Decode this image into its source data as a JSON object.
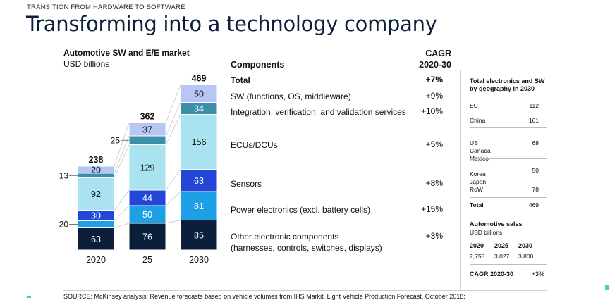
{
  "header": {
    "supertitle": "TRANSITION FROM HARDWARE TO SOFTWARE",
    "title": "Transforming into a technology company"
  },
  "chart_data": {
    "type": "bar",
    "stacked": true,
    "title": "Automotive SW and E/E market",
    "unit": "USD billions",
    "categories": [
      "2020",
      "25",
      "2030"
    ],
    "totals": [
      238,
      362,
      469
    ],
    "series": [
      {
        "name": "Other electronic components",
        "values": [
          63,
          76,
          85
        ],
        "color": "#0b1f3a",
        "text_color": "#ffffff"
      },
      {
        "name": "Power electronics (excl. battery cells)",
        "values": [
          20,
          50,
          81
        ],
        "color": "#1ea0e6",
        "text_color": "#ffffff"
      },
      {
        "name": "Sensors",
        "values": [
          30,
          44,
          63
        ],
        "color": "#2346d8",
        "text_color": "#ffffff"
      },
      {
        "name": "ECUs/DCUs",
        "values": [
          92,
          129,
          156
        ],
        "color": "#a9e3f0",
        "text_color": "#111111"
      },
      {
        "name": "Integration, verification, and validation services",
        "values": [
          13,
          25,
          34
        ],
        "color": "#3c8fa8",
        "text_color": "#ffffff"
      },
      {
        "name": "SW (functions, OS, middleware)",
        "values": [
          20,
          37,
          50
        ],
        "color": "#b8c6f5",
        "text_color": "#111111"
      }
    ],
    "outside_labels": [
      {
        "category": 0,
        "series": 1,
        "text": "20"
      },
      {
        "category": 0,
        "series": 4,
        "text": "13"
      },
      {
        "category": 1,
        "series": 4,
        "text": "25"
      }
    ],
    "hidden_inside": [
      [
        false,
        true,
        false,
        false,
        true,
        false
      ],
      [
        false,
        false,
        false,
        false,
        true,
        false
      ],
      [
        false,
        false,
        false,
        false,
        false,
        false
      ]
    ]
  },
  "components": {
    "header": "Components",
    "cagr_header_1": "CAGR",
    "cagr_header_2": "2020-30",
    "rows": [
      {
        "label": "Total",
        "cagr": "+7%"
      },
      {
        "label": "SW (functions, OS, middleware)",
        "cagr": "+9%"
      },
      {
        "label": "Integration, verification, and validation services",
        "cagr": "+10%"
      },
      {
        "label": "ECUs/DCUs",
        "cagr": "+5%"
      },
      {
        "label": "Sensors",
        "cagr": "+8%"
      },
      {
        "label": "Power electronics (excl. battery cells)",
        "cagr": "+15%"
      },
      {
        "label": "Other electronic components",
        "label2": "(harnesses, controls, switches, displays)",
        "cagr": "+3%"
      }
    ]
  },
  "side": {
    "title": "Total electronics and SW by geography in 2030",
    "geo": [
      {
        "label": "EU",
        "value": "112"
      },
      {
        "label": "China",
        "value": "161"
      },
      {
        "label": "US\nCanada\nMexico",
        "value": "68"
      },
      {
        "label": "Korea\nJapan",
        "value": "50"
      },
      {
        "label": "RoW",
        "value": "78"
      }
    ],
    "total_label": "Total",
    "total_value": "469",
    "sales_title": "Automotive sales",
    "sales_unit": "USD billions",
    "sales_years": [
      "2020",
      "2025",
      "2030"
    ],
    "sales_values": [
      "2,755",
      "3,027",
      "3,800"
    ],
    "cagr_label": "CAGR 2020-30",
    "cagr_value": "+3%"
  },
  "footer": {
    "source": "SOURCE: McKinsey analysis; Revenue forecasts based on vehicle volumes from IHS Markit, Light Vehicle Production Forecast, October 2018;"
  }
}
